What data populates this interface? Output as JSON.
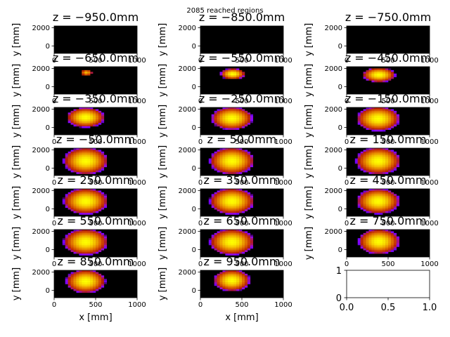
{
  "chart_data": {
    "type": "heatmap",
    "suptitle": "2085 reached regions",
    "xlabel": "x [mm]",
    "ylabel": "y [mm]",
    "xlim": [
      0,
      1000
    ],
    "ylim": [
      -800,
      2200
    ],
    "xticks": [
      "0",
      "500",
      "1000"
    ],
    "yticks": [
      "0",
      "2000"
    ],
    "colormap": "gnuplot",
    "background_color": "#000000",
    "panels": [
      {
        "title": "z = −950.0mm",
        "z": -950,
        "cx": 0,
        "cy": 0,
        "rx": 0,
        "ry": 0,
        "peak": 0
      },
      {
        "title": "z = −850.0mm",
        "z": -850,
        "cx": 0,
        "cy": 0,
        "rx": 0,
        "ry": 0,
        "peak": 0
      },
      {
        "title": "z = −750.0mm",
        "z": -750,
        "cx": 0,
        "cy": 0,
        "rx": 0,
        "ry": 0,
        "peak": 0
      },
      {
        "title": "z = −650.0mm",
        "z": -650,
        "cx": 390,
        "cy": 1550,
        "rx": 70,
        "ry": 330,
        "peak": 0.9
      },
      {
        "title": "z = −550.0mm",
        "z": -550,
        "cx": 390,
        "cy": 1400,
        "rx": 150,
        "ry": 600,
        "peak": 1.0
      },
      {
        "title": "z = −450.0mm",
        "z": -450,
        "cx": 390,
        "cy": 1300,
        "rx": 200,
        "ry": 800,
        "peak": 1.0
      },
      {
        "title": "z = −350.0mm",
        "z": -350,
        "cx": 380,
        "cy": 1100,
        "rx": 230,
        "ry": 1100,
        "peak": 1.0
      },
      {
        "title": "z = −250.0mm",
        "z": -250,
        "cx": 380,
        "cy": 1000,
        "rx": 250,
        "ry": 1250,
        "peak": 1.0
      },
      {
        "title": "z = −150.0mm",
        "z": -150,
        "cx": 380,
        "cy": 950,
        "rx": 260,
        "ry": 1350,
        "peak": 1.0
      },
      {
        "title": "z = −50.0mm",
        "z": -50,
        "cx": 380,
        "cy": 800,
        "rx": 270,
        "ry": 1500,
        "peak": 1.0
      },
      {
        "title": "z = 50.0mm",
        "z": 50,
        "cx": 380,
        "cy": 800,
        "rx": 270,
        "ry": 1500,
        "peak": 1.0
      },
      {
        "title": "z = 150.0mm",
        "z": 150,
        "cx": 380,
        "cy": 800,
        "rx": 270,
        "ry": 1500,
        "peak": 1.0
      },
      {
        "title": "z = 250.0mm",
        "z": 250,
        "cx": 380,
        "cy": 850,
        "rx": 270,
        "ry": 1450,
        "peak": 1.0
      },
      {
        "title": "z = 350.0mm",
        "z": 350,
        "cx": 380,
        "cy": 850,
        "rx": 270,
        "ry": 1450,
        "peak": 1.0
      },
      {
        "title": "z = 450.0mm",
        "z": 450,
        "cx": 380,
        "cy": 850,
        "rx": 260,
        "ry": 1400,
        "peak": 1.0
      },
      {
        "title": "z = 550.0mm",
        "z": 550,
        "cx": 380,
        "cy": 850,
        "rx": 270,
        "ry": 1450,
        "peak": 1.0
      },
      {
        "title": "z = 650.0mm",
        "z": 650,
        "cx": 380,
        "cy": 850,
        "rx": 270,
        "ry": 1450,
        "peak": 1.0
      },
      {
        "title": "z = 750.0mm",
        "z": 750,
        "cx": 390,
        "cy": 900,
        "rx": 250,
        "ry": 1400,
        "peak": 1.0
      },
      {
        "title": "z = 850.0mm",
        "z": 850,
        "cx": 380,
        "cy": 1000,
        "rx": 240,
        "ry": 1300,
        "peak": 1.0
      },
      {
        "title": "z = 950.0mm",
        "z": 950,
        "cx": 380,
        "cy": 1100,
        "rx": 220,
        "ry": 1200,
        "peak": 1.0
      }
    ],
    "empty_axes": {
      "xlim": [
        0.0,
        1.0
      ],
      "ylim": [
        0,
        1
      ],
      "xticks": [
        "0.0",
        "0.5",
        "1.0"
      ],
      "yticks": [
        "0",
        "1"
      ]
    }
  }
}
